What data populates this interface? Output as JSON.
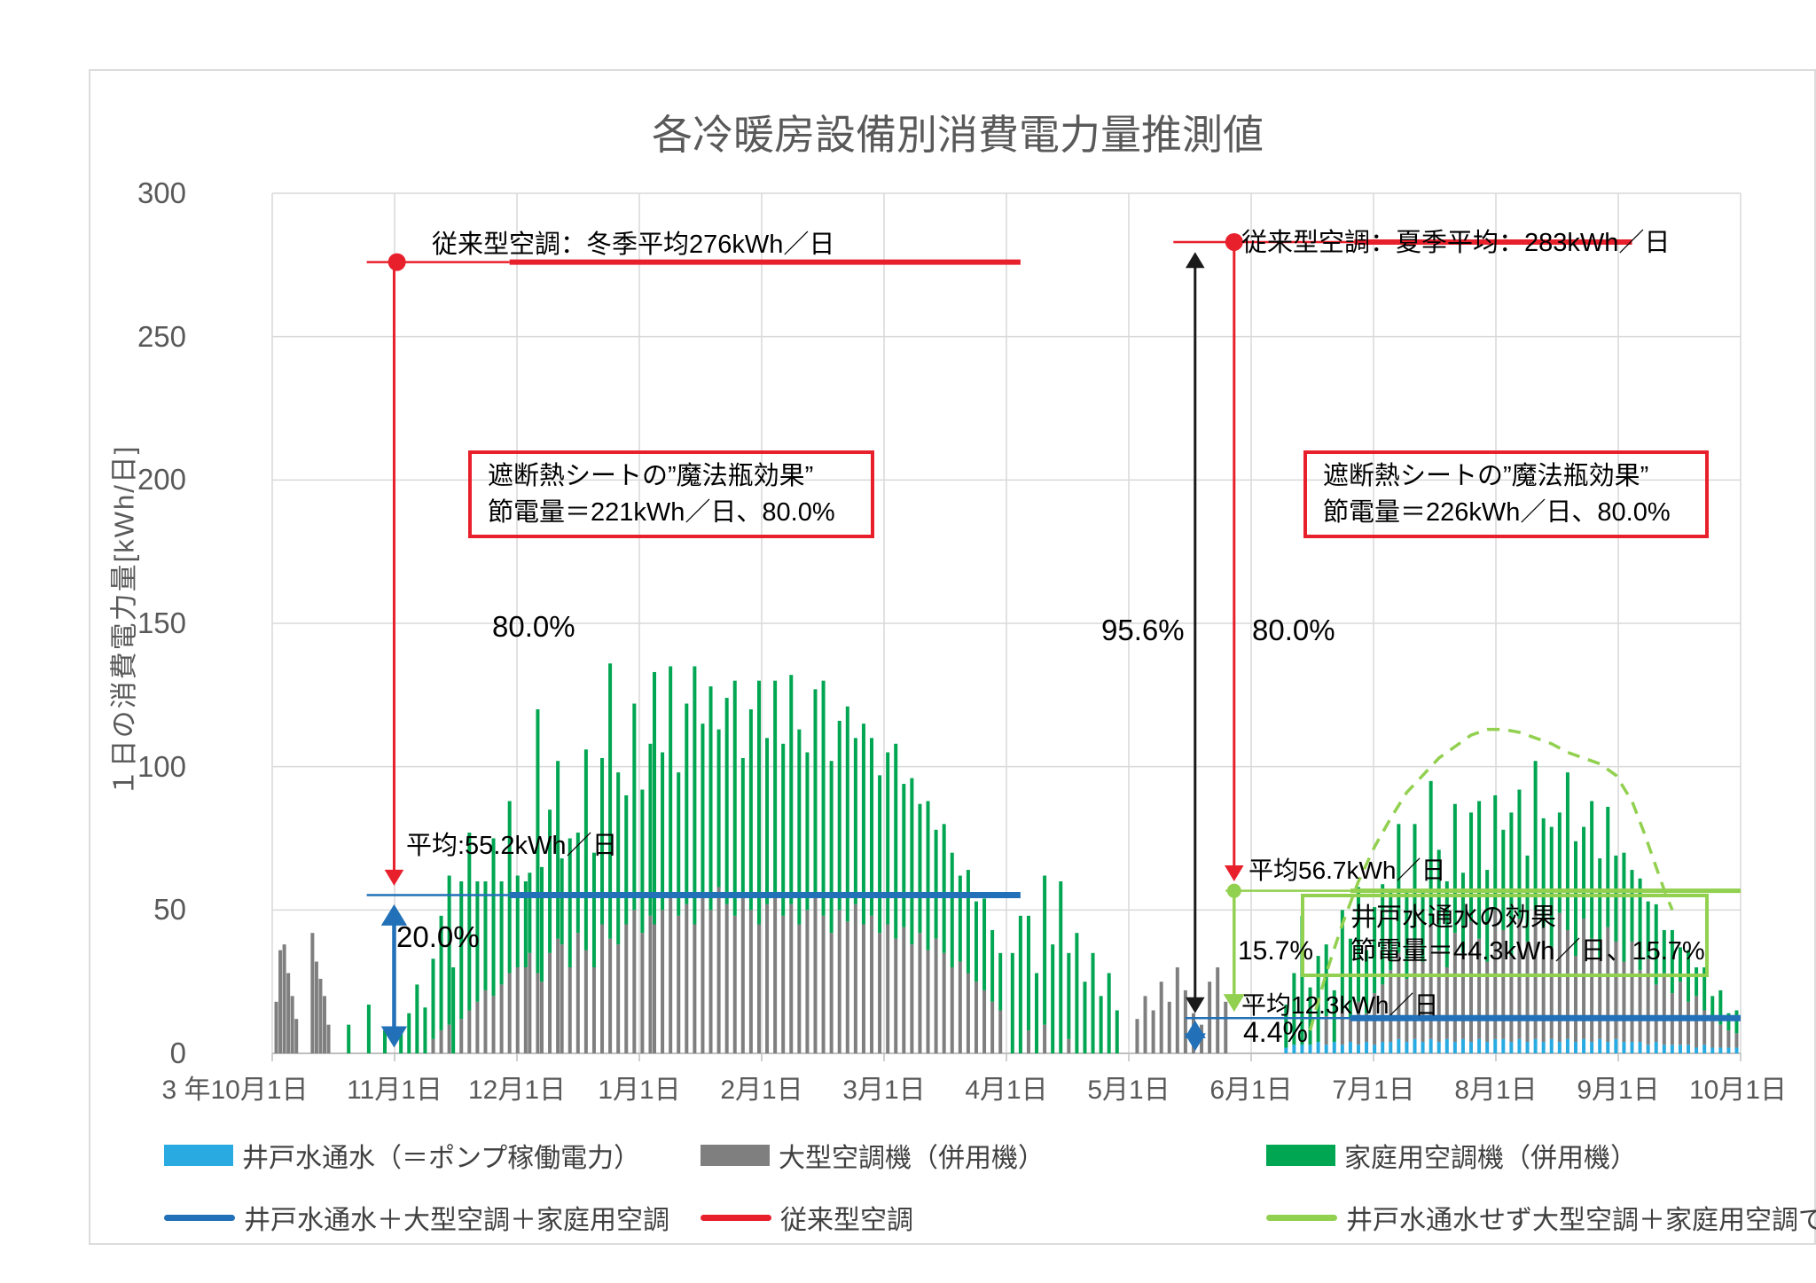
{
  "title": "各冷暖房設備別消費電力量推測値",
  "y_axis": {
    "label": "１日の消費電力量[kWh/日]",
    "ticks": [
      "300",
      "250",
      "200",
      "150",
      "100",
      "50",
      "0"
    ],
    "min": 0,
    "max": 300
  },
  "x_axis": {
    "labels": [
      "3 年10月1日",
      "11月1日",
      "12月1日",
      "1月1日",
      "2月1日",
      "3月1日",
      "4月1日",
      "5月1日",
      "6月1日",
      "7月1日",
      "8月1日",
      "9月1日",
      "10月1日"
    ],
    "days_total": 365
  },
  "annotations": {
    "winter_avg": "従来型空調：冬季平均276kWh／日",
    "summer_avg": "従来型空調：夏季平均：283kWh／日",
    "box_left_line1": "遮断熱シートの”魔法瓶効果”",
    "box_left_line2": "節電量＝221kWh／日、80.0%",
    "box_right_line1": "遮断熱シートの”魔法瓶効果”",
    "box_right_line2": "節電量＝226kWh／日、80.0%",
    "green_box_line1": "井戸水通水の効果",
    "green_box_line2": "節電量＝44.3kWh／日、15.7%",
    "pct_80_left": "80.0%",
    "avg_combined_winter": "平均:55.2kWh／日",
    "pct_20": "20.0%",
    "pct_956": "95.6%",
    "pct_80_right": "80.0%",
    "avg_no_well_summer": "平均56.7kWh／日",
    "pct_157": "15.7%",
    "avg_combined_summer": "平均12.3kWh／日",
    "pct_44": "4.4%"
  },
  "legend": {
    "row1": [
      {
        "label": "井戸水通水（＝ポンプ稼働電力）",
        "color_key": "pump_cyan"
      },
      {
        "label": "大型空調機（併用機）",
        "color_key": "large_ac_gray"
      },
      {
        "label": "家庭用空調機（併用機）",
        "color_key": "household_green"
      }
    ],
    "row2": [
      {
        "label": "井戸水通水＋大型空調＋家庭用空調",
        "color_key": "blue"
      },
      {
        "label": "従来型空調",
        "color_key": "red"
      },
      {
        "label": "井戸水通水せず大型空調＋家庭用空調で冷房",
        "color_key": "light_green"
      }
    ]
  },
  "colors": {
    "red": "#e8202c",
    "blue": "#2271b8",
    "black": "#1a1a1a",
    "pump_cyan": "#29abe2",
    "large_ac_gray": "#7f7f7f",
    "household_green": "#00a651",
    "light_green": "#92d050",
    "grid": "#d9d9d9",
    "axis": "#bfbfbf",
    "text_gray": "#595959"
  },
  "chart_data": {
    "type": "bar",
    "stacked": true,
    "ylim": [
      0,
      300
    ],
    "grid": true,
    "legend_position": "bottom",
    "series_names": {
      "pump": "井戸水通水（＝ポンプ稼働電力）",
      "large_ac": "大型空調機（併用機）",
      "household_ac": "家庭用空調機（併用機）",
      "combined_line": "井戸水通水＋大型空調＋家庭用空調",
      "conventional_line": "従来型空調",
      "no_well_line": "井戸水通水せず大型空調＋家庭用空調で冷房"
    },
    "key_values": {
      "conventional_winter_avg": 276,
      "conventional_summer_avg": 283,
      "combined_winter_avg": 55.2,
      "no_well_summer_avg": 56.7,
      "combined_summer_avg": 12.3,
      "winter_saving_kwh": 221,
      "winter_saving_pct": 80.0,
      "summer_sheet_saving_kwh": 226,
      "summer_sheet_saving_pct": 80.0,
      "well_saving_kwh": 44.3,
      "well_saving_pct": 15.7,
      "total_saving_pct": 95.6,
      "pump_share_pct": 4.4,
      "winter_residual_pct": 20.0
    },
    "bars_format": [
      "day_from_oct1",
      "pump",
      "large_ac",
      "household_ac"
    ],
    "bars": [
      [
        1,
        0,
        18,
        0
      ],
      [
        2,
        0,
        36,
        0
      ],
      [
        3,
        0,
        38,
        0
      ],
      [
        4,
        0,
        28,
        0
      ],
      [
        5,
        0,
        20,
        0
      ],
      [
        6,
        0,
        12,
        0
      ],
      [
        10,
        0,
        42,
        0
      ],
      [
        11,
        0,
        32,
        0
      ],
      [
        12,
        0,
        26,
        0
      ],
      [
        13,
        0,
        20,
        0
      ],
      [
        14,
        0,
        10,
        0
      ],
      [
        19,
        0,
        0,
        10
      ],
      [
        24,
        0,
        0,
        17
      ],
      [
        28,
        0,
        0,
        8
      ],
      [
        32,
        0,
        0,
        9
      ],
      [
        34,
        0,
        0,
        14
      ],
      [
        36,
        0,
        0,
        24
      ],
      [
        38,
        0,
        0,
        16
      ],
      [
        40,
        0,
        5,
        28
      ],
      [
        42,
        0,
        8,
        40
      ],
      [
        44,
        0,
        10,
        52
      ],
      [
        45,
        0,
        0,
        30
      ],
      [
        47,
        0,
        12,
        48
      ],
      [
        49,
        0,
        15,
        62
      ],
      [
        51,
        0,
        18,
        42
      ],
      [
        53,
        0,
        22,
        38
      ],
      [
        55,
        0,
        20,
        55
      ],
      [
        57,
        0,
        24,
        36
      ],
      [
        59,
        0,
        28,
        60
      ],
      [
        61,
        0,
        30,
        32
      ],
      [
        63,
        0,
        30,
        30
      ],
      [
        64,
        0,
        35,
        28
      ],
      [
        66,
        0,
        28,
        92
      ],
      [
        67,
        0,
        25,
        40
      ],
      [
        69,
        0,
        35,
        50
      ],
      [
        71,
        0,
        40,
        62
      ],
      [
        72,
        0,
        38,
        30
      ],
      [
        74,
        0,
        30,
        45
      ],
      [
        76,
        0,
        42,
        35
      ],
      [
        78,
        0,
        36,
        70
      ],
      [
        80,
        0,
        30,
        40
      ],
      [
        82,
        0,
        45,
        58
      ],
      [
        84,
        0,
        40,
        96
      ],
      [
        86,
        0,
        38,
        60
      ],
      [
        88,
        0,
        45,
        45
      ],
      [
        90,
        0,
        50,
        72
      ],
      [
        92,
        0,
        42,
        50
      ],
      [
        94,
        0,
        48,
        60
      ],
      [
        95,
        0,
        45,
        88
      ],
      [
        97,
        0,
        50,
        55
      ],
      [
        99,
        0,
        55,
        80
      ],
      [
        101,
        0,
        48,
        50
      ],
      [
        103,
        0,
        52,
        70
      ],
      [
        105,
        0,
        45,
        90
      ],
      [
        107,
        0,
        55,
        60
      ],
      [
        109,
        0,
        50,
        78
      ],
      [
        111,
        0,
        58,
        55
      ],
      [
        113,
        0,
        52,
        72
      ],
      [
        115,
        0,
        48,
        82
      ],
      [
        117,
        0,
        55,
        48
      ],
      [
        119,
        0,
        50,
        70
      ],
      [
        121,
        0,
        45,
        85
      ],
      [
        123,
        0,
        52,
        58
      ],
      [
        125,
        0,
        55,
        75
      ],
      [
        127,
        0,
        48,
        60
      ],
      [
        129,
        0,
        52,
        80
      ],
      [
        131,
        0,
        45,
        68
      ],
      [
        133,
        0,
        50,
        55
      ],
      [
        135,
        0,
        55,
        72
      ],
      [
        137,
        0,
        48,
        82
      ],
      [
        139,
        0,
        42,
        60
      ],
      [
        141,
        0,
        50,
        66
      ],
      [
        143,
        0,
        46,
        75
      ],
      [
        145,
        0,
        52,
        58
      ],
      [
        147,
        0,
        45,
        70
      ],
      [
        149,
        0,
        48,
        62
      ],
      [
        151,
        0,
        42,
        55
      ],
      [
        153,
        0,
        45,
        60
      ],
      [
        155,
        0,
        40,
        68
      ],
      [
        157,
        0,
        44,
        50
      ],
      [
        159,
        0,
        38,
        58
      ],
      [
        161,
        0,
        42,
        45
      ],
      [
        163,
        0,
        36,
        52
      ],
      [
        165,
        0,
        40,
        38
      ],
      [
        167,
        0,
        35,
        45
      ],
      [
        169,
        0,
        30,
        40
      ],
      [
        171,
        0,
        32,
        30
      ],
      [
        173,
        0,
        28,
        36
      ],
      [
        175,
        0,
        25,
        28
      ],
      [
        177,
        0,
        22,
        32
      ],
      [
        179,
        0,
        18,
        25
      ],
      [
        181,
        0,
        15,
        20
      ],
      [
        184,
        0,
        0,
        35
      ],
      [
        186,
        0,
        0,
        48
      ],
      [
        188,
        0,
        8,
        40
      ],
      [
        190,
        0,
        0,
        28
      ],
      [
        192,
        0,
        10,
        52
      ],
      [
        194,
        0,
        0,
        38
      ],
      [
        196,
        0,
        0,
        60
      ],
      [
        198,
        0,
        5,
        30
      ],
      [
        200,
        0,
        0,
        42
      ],
      [
        202,
        0,
        0,
        25
      ],
      [
        204,
        0,
        0,
        35
      ],
      [
        206,
        0,
        0,
        20
      ],
      [
        208,
        0,
        0,
        28
      ],
      [
        210,
        0,
        0,
        15
      ],
      [
        215,
        0,
        12,
        0
      ],
      [
        217,
        0,
        20,
        0
      ],
      [
        219,
        0,
        15,
        0
      ],
      [
        221,
        0,
        25,
        0
      ],
      [
        223,
        0,
        18,
        0
      ],
      [
        225,
        0,
        30,
        0
      ],
      [
        227,
        0,
        22,
        0
      ],
      [
        229,
        0,
        14,
        0
      ],
      [
        231,
        0,
        10,
        0
      ],
      [
        233,
        0,
        25,
        0
      ],
      [
        235,
        0,
        30,
        0
      ],
      [
        237,
        0,
        18,
        0
      ],
      [
        252,
        2,
        0,
        15
      ],
      [
        254,
        3,
        0,
        25
      ],
      [
        256,
        3,
        0,
        45
      ],
      [
        258,
        3,
        0,
        20
      ],
      [
        260,
        4,
        0,
        30
      ],
      [
        262,
        3,
        10,
        25
      ],
      [
        264,
        4,
        0,
        18
      ],
      [
        266,
        3,
        12,
        35
      ],
      [
        268,
        4,
        8,
        28
      ],
      [
        270,
        3,
        15,
        40
      ],
      [
        272,
        4,
        10,
        22
      ],
      [
        274,
        3,
        18,
        30
      ],
      [
        276,
        4,
        20,
        35
      ],
      [
        278,
        4,
        25,
        28
      ],
      [
        280,
        5,
        30,
        45
      ],
      [
        282,
        4,
        22,
        30
      ],
      [
        284,
        5,
        35,
        40
      ],
      [
        286,
        4,
        28,
        25
      ],
      [
        288,
        5,
        40,
        50
      ],
      [
        290,
        4,
        32,
        35
      ],
      [
        292,
        5,
        25,
        30
      ],
      [
        294,
        4,
        38,
        45
      ],
      [
        296,
        5,
        30,
        28
      ],
      [
        298,
        4,
        42,
        38
      ],
      [
        300,
        5,
        35,
        48
      ],
      [
        302,
        4,
        28,
        32
      ],
      [
        304,
        5,
        45,
        40
      ],
      [
        306,
        5,
        38,
        35
      ],
      [
        308,
        4,
        30,
        50
      ],
      [
        310,
        5,
        42,
        45
      ],
      [
        312,
        4,
        35,
        30
      ],
      [
        314,
        5,
        45,
        52
      ],
      [
        316,
        4,
        40,
        38
      ],
      [
        318,
        5,
        32,
        42
      ],
      [
        320,
        4,
        45,
        35
      ],
      [
        322,
        5,
        38,
        55
      ],
      [
        324,
        4,
        30,
        40
      ],
      [
        326,
        5,
        42,
        32
      ],
      [
        328,
        4,
        36,
        48
      ],
      [
        330,
        5,
        28,
        35
      ],
      [
        332,
        4,
        40,
        42
      ],
      [
        334,
        5,
        34,
        30
      ],
      [
        336,
        4,
        28,
        38
      ],
      [
        338,
        4,
        35,
        25
      ],
      [
        340,
        4,
        25,
        32
      ],
      [
        342,
        3,
        30,
        20
      ],
      [
        344,
        4,
        20,
        28
      ],
      [
        346,
        3,
        25,
        15
      ],
      [
        348,
        3,
        18,
        22
      ],
      [
        350,
        3,
        22,
        12
      ],
      [
        352,
        3,
        15,
        18
      ],
      [
        354,
        2,
        18,
        10
      ],
      [
        356,
        3,
        12,
        15
      ],
      [
        358,
        2,
        10,
        8
      ],
      [
        360,
        2,
        8,
        12
      ],
      [
        362,
        2,
        6,
        6
      ],
      [
        364,
        2,
        5,
        8
      ]
    ],
    "ref_line_segments": [
      {
        "v": 276,
        "d0": 23.5,
        "d1": 59,
        "w": 2.5,
        "color_key": "red"
      },
      {
        "v": 276,
        "d0": 59,
        "d1": 186,
        "w": 6,
        "color_key": "red"
      },
      {
        "v": 283,
        "d0": 224,
        "d1": 269,
        "w": 2.5,
        "color_key": "red"
      },
      {
        "v": 283,
        "d0": 269,
        "d1": 338,
        "w": 6,
        "color_key": "red"
      },
      {
        "v": 55.2,
        "d0": 23.5,
        "d1": 59,
        "w": 2.5,
        "color_key": "blue"
      },
      {
        "v": 55.2,
        "d0": 59,
        "d1": 186,
        "w": 7,
        "color_key": "blue"
      },
      {
        "v": 12.3,
        "d0": 227,
        "d1": 268,
        "w": 2.5,
        "color_key": "blue"
      },
      {
        "v": 12.3,
        "d0": 268,
        "d1": 365,
        "w": 7,
        "color_key": "blue"
      },
      {
        "v": 56.7,
        "d0": 237,
        "d1": 268,
        "w": 2.5,
        "color_key": "light_green"
      },
      {
        "v": 56.7,
        "d0": 268,
        "d1": 365,
        "w": 5,
        "color_key": "light_green"
      }
    ],
    "arrows": [
      {
        "d": 30.3,
        "v0": 276,
        "v1": 58.5,
        "w": 3,
        "heads": "end",
        "color_key": "red"
      },
      {
        "d": 30.3,
        "v0": 52,
        "v1": 2,
        "w": 4.5,
        "heads": "both",
        "color_key": "blue"
      },
      {
        "d": 229.4,
        "v0": 279.5,
        "v1": 14,
        "w": 3,
        "heads": "both",
        "color_key": "black"
      },
      {
        "d": 239.1,
        "v0": 281,
        "v1": 60,
        "w": 3,
        "heads": "end",
        "color_key": "red"
      },
      {
        "d": 239.1,
        "v0": 56,
        "v1": 14.5,
        "w": 3.5,
        "heads": "end",
        "color_key": "light_green"
      },
      {
        "d": 229.4,
        "v0": 11.5,
        "v1": 0.8,
        "w": 3.5,
        "heads": "both",
        "color_key": "blue"
      }
    ],
    "dots": [
      {
        "d": 31,
        "v": 276,
        "r": 10,
        "color_key": "red"
      },
      {
        "d": 239.1,
        "v": 283,
        "r": 10,
        "color_key": "red"
      },
      {
        "d": 239.1,
        "v": 56.7,
        "r": 8,
        "color_key": "light_green"
      }
    ],
    "dashed_curve": [
      [
        258,
        8
      ],
      [
        262,
        28
      ],
      [
        266,
        45
      ],
      [
        270,
        60
      ],
      [
        274,
        72
      ],
      [
        278,
        82
      ],
      [
        282,
        91
      ],
      [
        286,
        97
      ],
      [
        290,
        103
      ],
      [
        294,
        107
      ],
      [
        298,
        111
      ],
      [
        302,
        113
      ],
      [
        306,
        113
      ],
      [
        310,
        112
      ],
      [
        314,
        110
      ],
      [
        318,
        108
      ],
      [
        322,
        105
      ],
      [
        326,
        103
      ],
      [
        330,
        101
      ],
      [
        334,
        97
      ],
      [
        338,
        88
      ],
      [
        341,
        77
      ],
      [
        344,
        65
      ],
      [
        346,
        57
      ],
      [
        348,
        50
      ]
    ]
  }
}
